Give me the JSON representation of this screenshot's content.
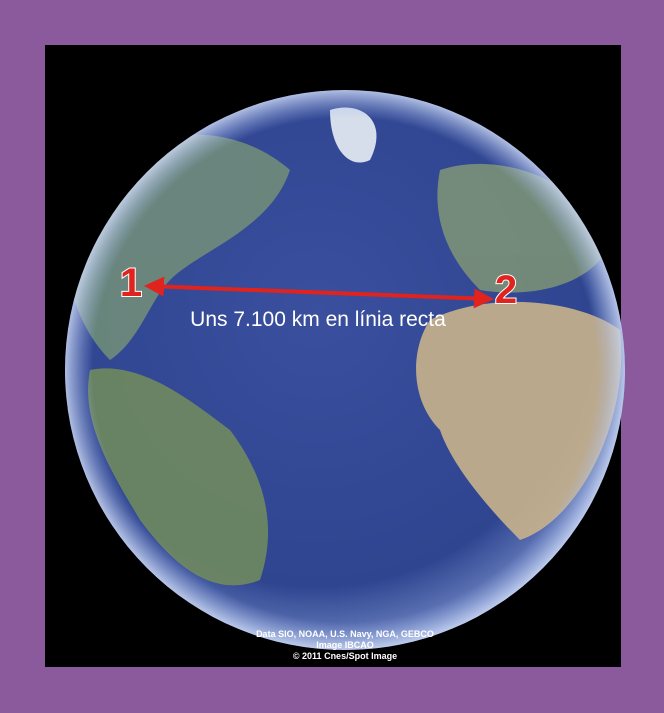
{
  "points": [
    {
      "label": "1"
    },
    {
      "label": "2"
    }
  ],
  "distance_label": "Uns 7.100 km en línia recta",
  "attribution": [
    "Data SIO, NOAA, U.S. Navy, NGA, GEBCO",
    "Image IBCAO",
    "© 2011 Cnes/Spot Image"
  ]
}
